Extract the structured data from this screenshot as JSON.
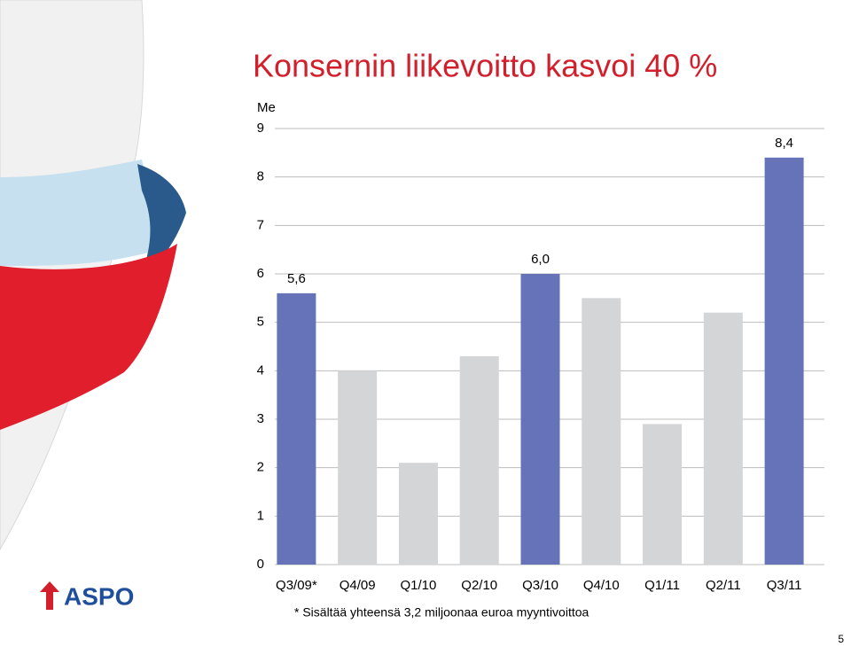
{
  "chart_data": {
    "type": "bar",
    "title": "Konsernin liikevoitto kasvoi 40 %",
    "y_label": "Me",
    "categories": [
      "Q3/09*",
      "Q4/09",
      "Q1/10",
      "Q2/10",
      "Q3/10",
      "Q4/10",
      "Q1/11",
      "Q2/11",
      "Q3/11"
    ],
    "values": [
      5.6,
      4.0,
      2.1,
      4.3,
      6.0,
      5.5,
      2.9,
      5.2,
      8.4
    ],
    "value_labels": [
      "5,6",
      null,
      null,
      null,
      "6,0",
      null,
      null,
      null,
      "8,4"
    ],
    "colors": [
      "#6673b8",
      "#d4d5d7",
      "#d4d5d7",
      "#d4d5d7",
      "#6673b8",
      "#d4d5d7",
      "#d4d5d7",
      "#d4d5d7",
      "#6673b8"
    ],
    "ylim": [
      0,
      9
    ],
    "yticks": [
      0,
      1,
      2,
      3,
      4,
      5,
      6,
      7,
      8,
      9
    ],
    "grid": true,
    "footnote": "* Sisältää yhteensä 3,2 miljoonaa euroa myyntivoittoa"
  },
  "logo": "ASPO",
  "page_number": 5
}
